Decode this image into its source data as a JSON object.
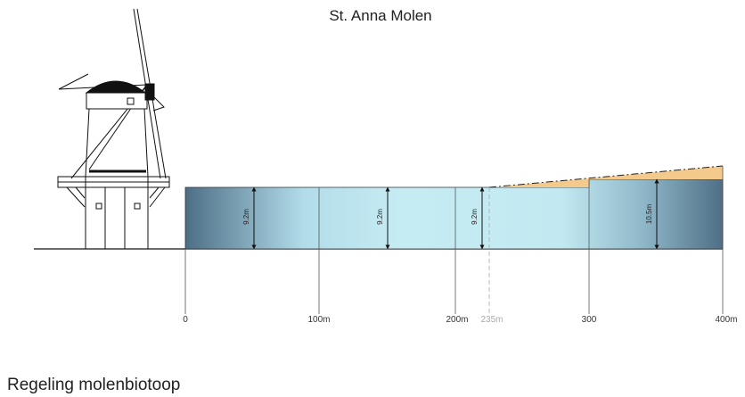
{
  "header": {
    "title": "St. Anna Molen"
  },
  "heights": [
    "9.2m",
    "9.2m",
    "9.2m",
    "10.5m"
  ],
  "distances": [
    "0",
    "100m",
    "200m",
    "235m",
    "300",
    "400m"
  ],
  "footer": {
    "title": "Regeling molenbiotoop"
  }
}
